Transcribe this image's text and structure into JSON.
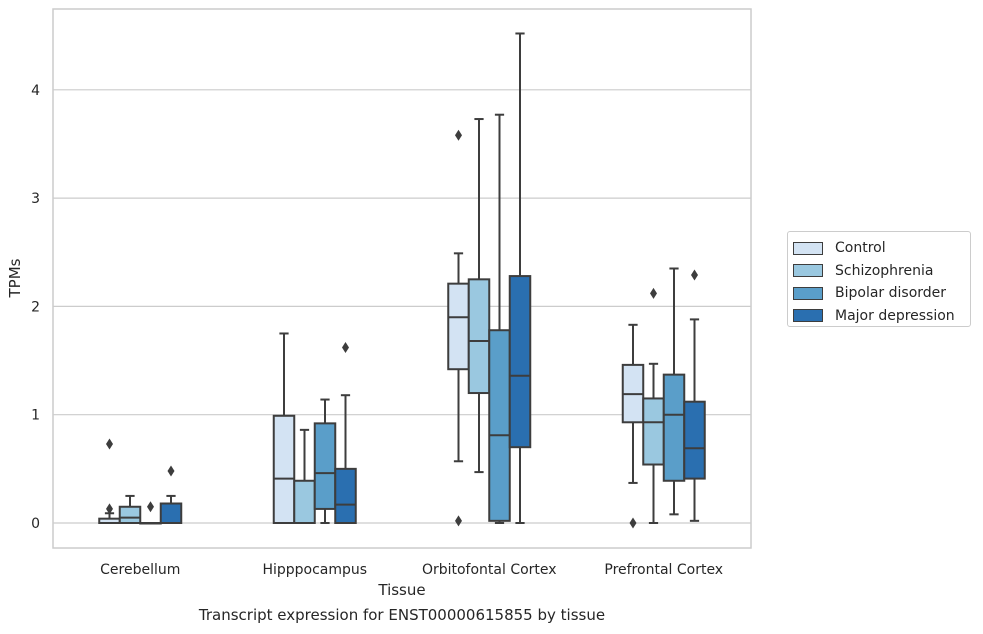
{
  "chart_data": {
    "type": "boxplot",
    "caption": "Transcript expression for ENST00000615855 by tissue",
    "xlabel": "Tissue",
    "ylabel": "TPMs",
    "ylim": [
      -0.22,
      4.75
    ],
    "yticks": [
      0,
      1,
      2,
      3,
      4
    ],
    "grid": "horizontal",
    "legend_position": "right",
    "categories": [
      "Cerebellum",
      "Hipppocampus",
      "Orbitofontal Cortex",
      "Prefrontal Cortex"
    ],
    "series": [
      {
        "name": "Control",
        "color": "#d3e3f3",
        "boxes": [
          {
            "whislo": 0,
            "q1": 0,
            "med": 0,
            "q3": 0.04,
            "whishi": 0.09,
            "fliers": [
              0.13,
              0.73
            ]
          },
          {
            "whislo": 0,
            "q1": 0,
            "med": 0.41,
            "q3": 0.99,
            "whishi": 1.75,
            "fliers": []
          },
          {
            "whislo": 0.57,
            "q1": 1.42,
            "med": 1.9,
            "q3": 2.21,
            "whishi": 2.49,
            "fliers": [
              0.02,
              3.58
            ]
          },
          {
            "whislo": 0.37,
            "q1": 0.93,
            "med": 1.19,
            "q3": 1.46,
            "whishi": 1.83,
            "fliers": [
              0
            ]
          }
        ]
      },
      {
        "name": "Schizophrenia",
        "color": "#9ac8e0",
        "boxes": [
          {
            "whislo": 0,
            "q1": 0,
            "med": 0.05,
            "q3": 0.15,
            "whishi": 0.25,
            "fliers": []
          },
          {
            "whislo": 0,
            "q1": 0,
            "med": 0,
            "q3": 0.39,
            "whishi": 0.86,
            "fliers": []
          },
          {
            "whislo": 0.47,
            "q1": 1.2,
            "med": 1.68,
            "q3": 2.25,
            "whishi": 3.73,
            "fliers": []
          },
          {
            "whislo": 0,
            "q1": 0.54,
            "med": 0.93,
            "q3": 1.15,
            "whishi": 1.47,
            "fliers": [
              2.12
            ]
          }
        ]
      },
      {
        "name": "Bipolar disorder",
        "color": "#5a9ec9",
        "boxes": [
          {
            "whislo": 0,
            "q1": 0,
            "med": 0,
            "q3": 0,
            "whishi": 0,
            "fliers": [
              0.15
            ]
          },
          {
            "whislo": 0,
            "q1": 0.13,
            "med": 0.46,
            "q3": 0.92,
            "whishi": 1.14,
            "fliers": []
          },
          {
            "whislo": 0,
            "q1": 0.02,
            "med": 0.81,
            "q3": 1.78,
            "whishi": 3.77,
            "fliers": []
          },
          {
            "whislo": 0.08,
            "q1": 0.39,
            "med": 1.0,
            "q3": 1.37,
            "whishi": 2.35,
            "fliers": []
          }
        ]
      },
      {
        "name": "Major depression",
        "color": "#2a6fb0",
        "boxes": [
          {
            "whislo": 0,
            "q1": 0,
            "med": 0,
            "q3": 0.18,
            "whishi": 0.25,
            "fliers": [
              0.48
            ]
          },
          {
            "whislo": 0,
            "q1": 0,
            "med": 0.17,
            "q3": 0.5,
            "whishi": 1.18,
            "fliers": [
              1.62
            ]
          },
          {
            "whislo": 0,
            "q1": 0.7,
            "med": 1.36,
            "q3": 2.28,
            "whishi": 4.52,
            "fliers": []
          },
          {
            "whislo": 0.02,
            "q1": 0.41,
            "med": 0.69,
            "q3": 1.12,
            "whishi": 1.88,
            "fliers": [
              2.29
            ]
          }
        ]
      }
    ]
  }
}
